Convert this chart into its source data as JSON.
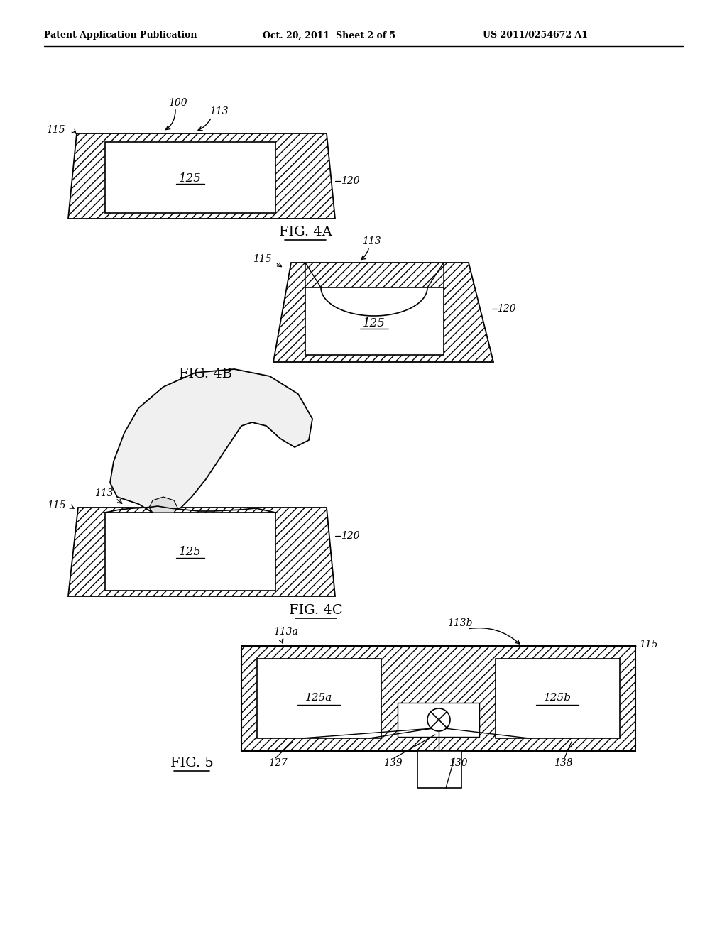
{
  "bg_color": "#ffffff",
  "header_left": "Patent Application Publication",
  "header_mid": "Oct. 20, 2011  Sheet 2 of 5",
  "header_right": "US 2011/0254672 A1",
  "fig_labels": {
    "4A": "FIG. 4A",
    "4B": "FIG. 4B",
    "4C": "FIG. 4C",
    "5": "FIG. 5"
  },
  "line_color": "#000000",
  "hatch_pattern": "///",
  "label_fontsize": 10,
  "fig_label_fontsize": 14
}
